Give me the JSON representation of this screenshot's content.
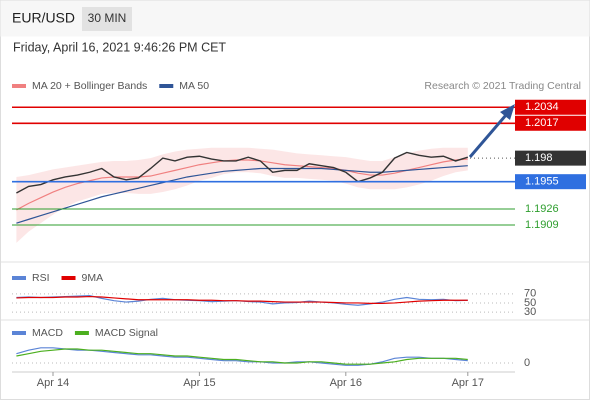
{
  "header": {
    "symbol": "EUR/USD",
    "interval": "30 MIN",
    "timestamp": "Friday, April 16, 2021 9:46:26 PM CET"
  },
  "chart_data": [
    {
      "type": "line",
      "source": "Research © 2021 Trading Central",
      "categories": [
        null,
        null,
        null,
        "Apr 14",
        null,
        null,
        null,
        null,
        null,
        null,
        null,
        null,
        null,
        null,
        null,
        "Apr 15",
        null,
        null,
        null,
        null,
        null,
        null,
        null,
        null,
        null,
        null,
        null,
        "Apr 16",
        null,
        null,
        null,
        null,
        null,
        null,
        null,
        null,
        null,
        "Apr 17"
      ],
      "ylim": [
        1.1874,
        1.2047
      ],
      "levels": [
        {
          "value": 1.2034,
          "color": "#e00000",
          "boxed": true
        },
        {
          "value": 1.2017,
          "color": "#e00000",
          "boxed": true
        },
        {
          "value": 1.198,
          "color": "#333333",
          "boxed": true,
          "dotted": true
        },
        {
          "value": 1.1955,
          "color": "#2f6fe0",
          "boxed": true
        },
        {
          "value": 1.1926,
          "color": "#2e9e2e",
          "boxed": false
        },
        {
          "value": 1.1909,
          "color": "#2e9e2e",
          "boxed": false
        }
      ],
      "series": [
        {
          "name": "MA 20 + Bollinger Bands",
          "color": "#f08080",
          "band_color": "#fbe0e0",
          "values": [
            1.1925,
            1.1932,
            1.1938,
            1.1944,
            1.1949,
            1.1953,
            1.1956,
            1.1959,
            1.196,
            1.196,
            1.196,
            1.1961,
            1.1964,
            1.1967,
            1.197,
            1.1973,
            1.1975,
            1.1977,
            1.1978,
            1.1978,
            1.1977,
            1.1975,
            1.1973,
            1.1972,
            1.1971,
            1.197,
            1.1969,
            1.1967,
            1.1964,
            1.1962,
            1.1962,
            1.1964,
            1.1967,
            1.197,
            1.1973,
            1.1976,
            1.1978,
            1.1979
          ],
          "band_upper": [
            1.196,
            1.1962,
            1.1965,
            1.1968,
            1.197,
            1.1972,
            1.1974,
            1.1976,
            1.1977,
            1.1977,
            1.1978,
            1.198,
            1.1984,
            1.1987,
            1.1989,
            1.199,
            1.1991,
            1.1991,
            1.1991,
            1.1991,
            1.199,
            1.1989,
            1.1987,
            1.1985,
            1.1984,
            1.1983,
            1.1982,
            1.1981,
            1.1979,
            1.1977,
            1.1977,
            1.1981,
            1.1985,
            1.1988,
            1.199,
            1.1991,
            1.1991,
            1.1991
          ],
          "band_lower": [
            1.189,
            1.1902,
            1.1911,
            1.192,
            1.1928,
            1.1934,
            1.1938,
            1.1942,
            1.1943,
            1.1943,
            1.1942,
            1.1942,
            1.1944,
            1.1947,
            1.1951,
            1.1956,
            1.1959,
            1.1963,
            1.1965,
            1.1965,
            1.1964,
            1.1961,
            1.1959,
            1.1959,
            1.1958,
            1.1957,
            1.1956,
            1.1953,
            1.1949,
            1.1947,
            1.1947,
            1.1947,
            1.1949,
            1.1952,
            1.1956,
            1.1961,
            1.1965,
            1.1967
          ]
        },
        {
          "name": "MA 50",
          "color": "#2f5597",
          "values": [
            1.1911,
            1.1915,
            1.1919,
            1.1923,
            1.1927,
            1.1931,
            1.1935,
            1.1939,
            1.1942,
            1.1945,
            1.1948,
            1.1951,
            1.1954,
            1.1957,
            1.196,
            1.1962,
            1.1964,
            1.1966,
            1.1967,
            1.1968,
            1.1969,
            1.1969,
            1.1969,
            1.1969,
            1.1969,
            1.1969,
            1.1968,
            1.1967,
            1.1966,
            1.1965,
            1.1965,
            1.1966,
            1.1967,
            1.1968,
            1.1969,
            1.197,
            1.1971,
            1.1972
          ]
        },
        {
          "color": "#333333",
          "values": [
            1.1943,
            1.195,
            1.1952,
            1.1957,
            1.196,
            1.1962,
            1.1965,
            1.1969,
            1.196,
            1.1957,
            1.1959,
            1.1969,
            1.198,
            1.1977,
            1.1981,
            1.1982,
            1.1979,
            1.1977,
            1.1977,
            1.1981,
            1.1977,
            1.1965,
            1.1967,
            1.1967,
            1.1974,
            1.1972,
            1.197,
            1.1965,
            1.1955,
            1.1959,
            1.1965,
            1.198,
            1.1986,
            1.1983,
            1.1981,
            1.1982,
            1.1977,
            1.1981
          ]
        }
      ]
    },
    {
      "type": "line",
      "ylim": [
        17,
        85
      ],
      "yticks": [
        70,
        50,
        30
      ],
      "grid": true,
      "series": [
        {
          "name": "RSI",
          "color": "#5b84d6",
          "values": [
            62,
            63,
            62,
            63,
            64,
            65,
            66,
            60,
            55,
            52,
            54,
            58,
            60,
            57,
            56,
            55,
            53,
            54,
            55,
            53,
            52,
            48,
            50,
            51,
            54,
            52,
            50,
            47,
            45,
            48,
            52,
            58,
            62,
            58,
            57,
            58,
            55,
            56
          ]
        },
        {
          "name": "9MA",
          "color": "#e00000",
          "values": [
            61,
            62,
            62,
            62,
            63,
            63,
            64,
            63,
            61,
            59,
            57,
            57,
            57,
            57,
            57,
            56,
            56,
            55,
            55,
            54,
            54,
            53,
            52,
            52,
            52,
            52,
            51,
            50,
            50,
            49,
            49,
            50,
            52,
            54,
            55,
            56,
            56,
            56
          ]
        }
      ]
    },
    {
      "type": "line",
      "ylim": [
        -0.0006,
        0.0018
      ],
      "yticks": [
        0
      ],
      "grid": true,
      "series": [
        {
          "name": "MACD",
          "color": "#5b84d6",
          "values": [
            0.0008,
            0.0011,
            0.0013,
            0.0013,
            0.0012,
            0.0011,
            0.0011,
            0.001,
            0.0009,
            0.0008,
            0.0007,
            0.0007,
            0.0006,
            0.0005,
            0.0005,
            0.0004,
            0.0003,
            0.0002,
            0.0002,
            0.0001,
            0.0001,
            0,
            0,
            0.0001,
            0.0001,
            0,
            -0.0001,
            -0.0002,
            -0.0002,
            -0.0001,
            0.0001,
            0.0004,
            0.0005,
            0.0005,
            0.0004,
            0.0004,
            0.0003,
            0.0002
          ]
        },
        {
          "name": "MACD Signal",
          "color": "#4caf1f",
          "values": [
            0.0006,
            0.0008,
            0.001,
            0.0011,
            0.0012,
            0.0012,
            0.0011,
            0.0011,
            0.001,
            0.0009,
            0.0008,
            0.0008,
            0.0007,
            0.0006,
            0.0006,
            0.0005,
            0.0004,
            0.0003,
            0.0003,
            0.0002,
            0.0001,
            0.0001,
            0,
            0,
            0.0001,
            0.0001,
            0,
            -0.0001,
            -0.0001,
            -0.0001,
            0,
            0.0001,
            0.0003,
            0.0004,
            0.0004,
            0.0004,
            0.0004,
            0.0003
          ]
        }
      ]
    }
  ]
}
